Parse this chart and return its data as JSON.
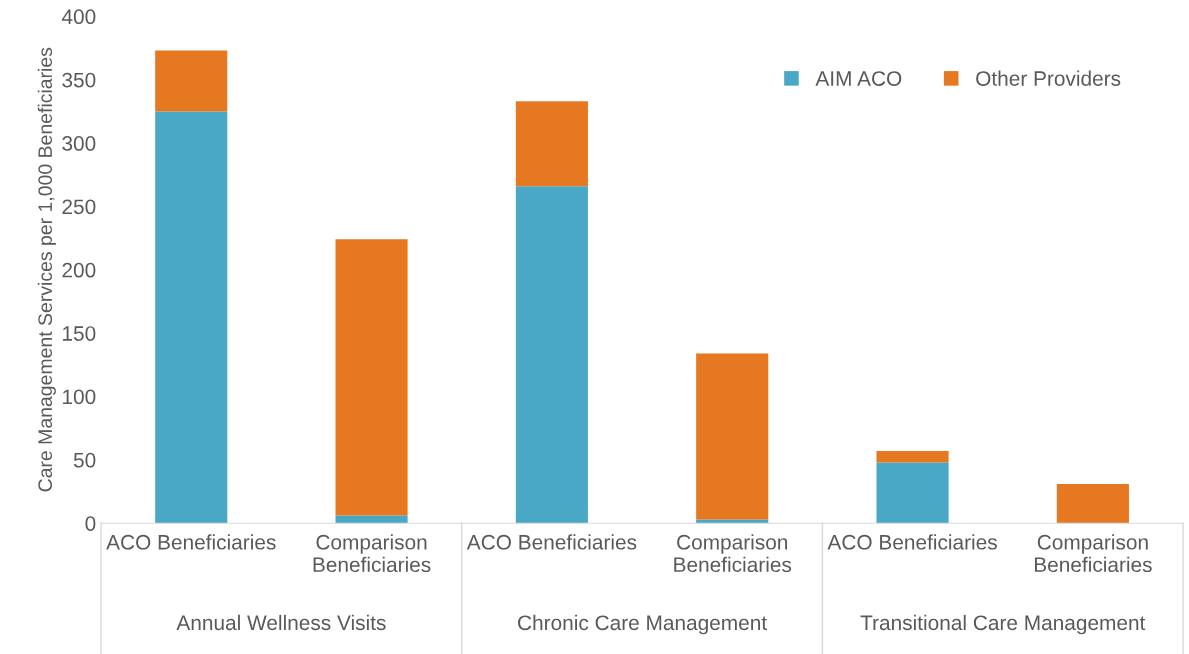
{
  "chart_data": {
    "type": "bar",
    "stacked": true,
    "ylabel": "Care Management Services per 1,000 Beneficiaries",
    "categories": [
      "ACO Beneficiaries",
      "Comparison\nBeneficiaries",
      "ACO Beneficiaries",
      "Comparison\nBeneficiaries",
      "ACO Beneficiaries",
      "Comparison\nBeneficiaries"
    ],
    "series": [
      {
        "name": "AIM ACO",
        "color": "#48a8c5",
        "values": [
          325,
          6,
          266,
          3,
          48,
          0
        ]
      },
      {
        "name": "Other Providers",
        "color": "#e67821",
        "values": [
          48,
          218,
          67,
          131,
          9,
          31
        ]
      }
    ],
    "annotations": [
      "Annual Wellness Visits",
      "Chronic Care Management",
      "Transitional Care Management"
    ],
    "ylim": [
      0,
      400
    ],
    "yticks": [
      0,
      50,
      100,
      150,
      200,
      250,
      300,
      350,
      400
    ],
    "grid": false,
    "legend": "top right"
  }
}
